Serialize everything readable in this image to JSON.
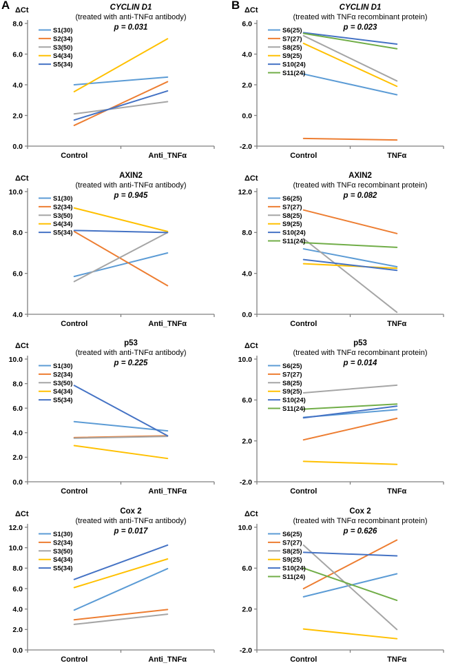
{
  "figure": {
    "panel_a_label": "A",
    "panel_b_label": "B"
  },
  "colors": {
    "background": "#FFFFFF",
    "axis": "#7F7F7F",
    "text": "#000000",
    "p_significant": "#FF0000",
    "p_normal": "#000000"
  },
  "chart_data": [
    {
      "id": "a-cyclin-d1",
      "panel": "A",
      "type": "line",
      "title": "CYCLIN D1",
      "title_italic": true,
      "subtitle": "(treated with anti-TNFα antibody)",
      "p_label": "p = 0.031",
      "p_significant": true,
      "ylabel": "ΔCt",
      "categories": [
        "Control",
        "Anti_TNFα"
      ],
      "ylim": [
        0,
        8
      ],
      "ytick_step": 2,
      "legend_position": "top-left",
      "grid": false,
      "series": [
        {
          "name": "S1(30)",
          "color": "#5B9BD5",
          "values": [
            4.0,
            4.5
          ]
        },
        {
          "name": "S2(34)",
          "color": "#ED7D31",
          "values": [
            1.35,
            4.2
          ]
        },
        {
          "name": "S3(50)",
          "color": "#A5A5A5",
          "values": [
            2.1,
            2.9
          ]
        },
        {
          "name": "S4(34)",
          "color": "#FFC000",
          "values": [
            3.55,
            7.0
          ]
        },
        {
          "name": "S5(34)",
          "color": "#4472C4",
          "values": [
            1.7,
            3.6
          ]
        }
      ]
    },
    {
      "id": "b-cyclin-d1",
      "panel": "B",
      "type": "line",
      "title": "CYCLIN D1",
      "title_italic": true,
      "subtitle": "(treated with TNFα recombinant protein)",
      "p_label": "p = 0.023",
      "p_significant": true,
      "ylabel": "ΔCt",
      "categories": [
        "Control",
        "TNFα"
      ],
      "ylim": [
        -2,
        6
      ],
      "ytick_step": 2,
      "legend_position": "top-left",
      "grid": false,
      "series": [
        {
          "name": "S6(25)",
          "color": "#5B9BD5",
          "values": [
            2.7,
            1.35
          ]
        },
        {
          "name": "S7(27)",
          "color": "#ED7D31",
          "values": [
            -1.5,
            -1.6
          ]
        },
        {
          "name": "S8(25)",
          "color": "#A5A5A5",
          "values": [
            5.2,
            2.25
          ]
        },
        {
          "name": "S9(25)",
          "color": "#FFC000",
          "values": [
            4.7,
            1.9
          ]
        },
        {
          "name": "S10(24)",
          "color": "#4472C4",
          "values": [
            5.4,
            4.65
          ]
        },
        {
          "name": "S11(24)",
          "color": "#70AD47",
          "values": [
            5.35,
            4.35
          ]
        }
      ]
    },
    {
      "id": "a-axin2",
      "panel": "A",
      "type": "line",
      "title": "AXIN2",
      "title_italic": false,
      "subtitle": "(treated with anti-TNFα antibody)",
      "p_label": "p = 0.945",
      "p_significant": false,
      "ylabel": "ΔCt",
      "categories": [
        "Control",
        "Anti_TNFα"
      ],
      "ylim": [
        4,
        10
      ],
      "ytick_step": 2,
      "legend_position": "top-left",
      "grid": false,
      "series": [
        {
          "name": "S1(30)",
          "color": "#5B9BD5",
          "values": [
            5.85,
            7.0
          ]
        },
        {
          "name": "S2(34)",
          "color": "#ED7D31",
          "values": [
            8.05,
            5.4
          ]
        },
        {
          "name": "S3(50)",
          "color": "#A5A5A5",
          "values": [
            5.6,
            8.0
          ]
        },
        {
          "name": "S4(34)",
          "color": "#FFC000",
          "values": [
            9.2,
            8.05
          ]
        },
        {
          "name": "S5(34)",
          "color": "#4472C4",
          "values": [
            8.1,
            8.0
          ]
        }
      ]
    },
    {
      "id": "b-axin2",
      "panel": "B",
      "type": "line",
      "title": "AXIN2",
      "title_italic": false,
      "subtitle": "(treated with TNFα recombinant protein)",
      "p_label": "p = 0.082",
      "p_significant": false,
      "ylabel": "ΔCt",
      "categories": [
        "Control",
        "TNFα"
      ],
      "ylim": [
        0,
        12
      ],
      "ytick_step": 4,
      "legend_position": "top-left",
      "grid": false,
      "series": [
        {
          "name": "S6(25)",
          "color": "#5B9BD5",
          "values": [
            6.4,
            4.65
          ]
        },
        {
          "name": "S7(27)",
          "color": "#ED7D31",
          "values": [
            10.2,
            7.9
          ]
        },
        {
          "name": "S8(25)",
          "color": "#A5A5A5",
          "values": [
            7.4,
            0.2
          ]
        },
        {
          "name": "S9(25)",
          "color": "#FFC000",
          "values": [
            4.95,
            4.5
          ]
        },
        {
          "name": "S10(24)",
          "color": "#4472C4",
          "values": [
            5.35,
            4.3
          ]
        },
        {
          "name": "S11(24)",
          "color": "#70AD47",
          "values": [
            7.0,
            6.55
          ]
        }
      ]
    },
    {
      "id": "a-p53",
      "panel": "A",
      "type": "line",
      "title": "p53",
      "title_italic": false,
      "subtitle": "(treated with anti-TNFα antibody)",
      "p_label": "p = 0.225",
      "p_significant": false,
      "ylabel": "ΔCt",
      "categories": [
        "Control",
        "Anti_TNFα"
      ],
      "ylim": [
        0,
        10
      ],
      "ytick_step": 2,
      "legend_position": "top-left",
      "grid": false,
      "series": [
        {
          "name": "S1(30)",
          "color": "#5B9BD5",
          "values": [
            4.9,
            4.15
          ]
        },
        {
          "name": "S2(34)",
          "color": "#ED7D31",
          "values": [
            3.6,
            3.75
          ]
        },
        {
          "name": "S3(50)",
          "color": "#A5A5A5",
          "values": [
            3.55,
            3.7
          ]
        },
        {
          "name": "S4(34)",
          "color": "#FFC000",
          "values": [
            2.95,
            1.9
          ]
        },
        {
          "name": "S5(34)",
          "color": "#4472C4",
          "values": [
            7.85,
            3.75
          ]
        }
      ]
    },
    {
      "id": "b-p53",
      "panel": "B",
      "type": "line",
      "title": "p53",
      "title_italic": false,
      "subtitle": "(treated with TNFα recombinant protein)",
      "p_label": "p = 0.014",
      "p_significant": true,
      "ylabel": "ΔCt",
      "categories": [
        "Control",
        "TNFα"
      ],
      "ylim": [
        -2,
        10
      ],
      "ytick_step": 4,
      "legend_position": "top-left",
      "grid": false,
      "series": [
        {
          "name": "S6(25)",
          "color": "#5B9BD5",
          "values": [
            4.3,
            5.05
          ]
        },
        {
          "name": "S7(27)",
          "color": "#ED7D31",
          "values": [
            2.1,
            4.2
          ]
        },
        {
          "name": "S8(25)",
          "color": "#A5A5A5",
          "values": [
            6.7,
            7.45
          ]
        },
        {
          "name": "S9(25)",
          "color": "#FFC000",
          "values": [
            0.0,
            -0.3
          ]
        },
        {
          "name": "S10(24)",
          "color": "#4472C4",
          "values": [
            4.25,
            5.4
          ]
        },
        {
          "name": "S11(24)",
          "color": "#70AD47",
          "values": [
            5.1,
            5.6
          ]
        }
      ]
    },
    {
      "id": "a-cox2",
      "panel": "A",
      "type": "line",
      "title": "Cox 2",
      "title_italic": false,
      "subtitle": "(treated with anti-TNFα antibody)",
      "p_label": "p = 0.017",
      "p_significant": true,
      "ylabel": "ΔCt",
      "categories": [
        "Control",
        "Anti_TNFα"
      ],
      "ylim": [
        0,
        12
      ],
      "ytick_step": 2,
      "legend_position": "top-left",
      "grid": false,
      "series": [
        {
          "name": "S1(30)",
          "color": "#5B9BD5",
          "values": [
            3.9,
            7.95
          ]
        },
        {
          "name": "S2(34)",
          "color": "#ED7D31",
          "values": [
            2.95,
            3.95
          ]
        },
        {
          "name": "S3(50)",
          "color": "#A5A5A5",
          "values": [
            2.5,
            3.5
          ]
        },
        {
          "name": "S4(34)",
          "color": "#FFC000",
          "values": [
            6.1,
            8.9
          ]
        },
        {
          "name": "S5(34)",
          "color": "#4472C4",
          "values": [
            6.9,
            10.25
          ]
        }
      ]
    },
    {
      "id": "b-cox2",
      "panel": "B",
      "type": "line",
      "title": "Cox 2",
      "title_italic": false,
      "subtitle": "(treated with TNFα recombinant protein)",
      "p_label": "p = 0.626",
      "p_significant": false,
      "ylabel": "ΔCt",
      "categories": [
        "Control",
        "TNFα"
      ],
      "ylim": [
        -2,
        10
      ],
      "ytick_step": 4,
      "legend_position": "top-left",
      "grid": false,
      "series": [
        {
          "name": "S6(25)",
          "color": "#5B9BD5",
          "values": [
            3.2,
            5.45
          ]
        },
        {
          "name": "S7(27)",
          "color": "#ED7D31",
          "values": [
            4.0,
            8.75
          ]
        },
        {
          "name": "S8(25)",
          "color": "#A5A5A5",
          "values": [
            8.25,
            0.0
          ]
        },
        {
          "name": "S9(25)",
          "color": "#FFC000",
          "values": [
            0.05,
            -0.9
          ]
        },
        {
          "name": "S10(24)",
          "color": "#4472C4",
          "values": [
            7.55,
            7.2
          ]
        },
        {
          "name": "S11(24)",
          "color": "#70AD47",
          "values": [
            6.0,
            2.85
          ]
        }
      ]
    }
  ]
}
